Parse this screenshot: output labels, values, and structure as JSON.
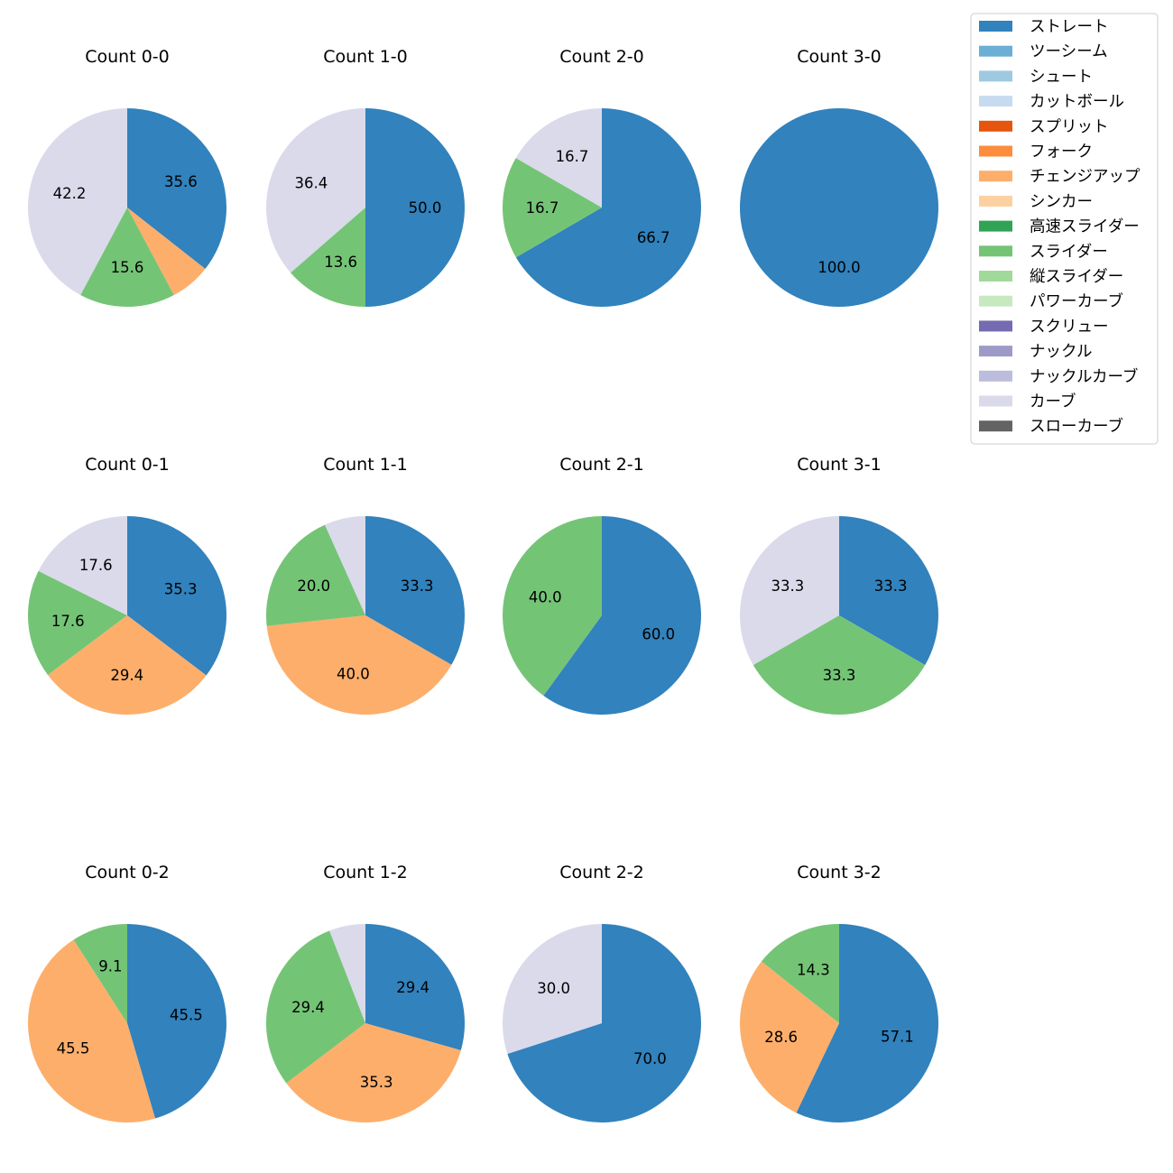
{
  "chart_data": {
    "type": "pie",
    "legend": {
      "placement": "top-right",
      "entries": [
        {
          "name": "ストレート",
          "color": "#3182bd"
        },
        {
          "name": "ツーシーム",
          "color": "#6baed6"
        },
        {
          "name": "シュート",
          "color": "#9ecae1"
        },
        {
          "name": "カットボール",
          "color": "#c6dbef"
        },
        {
          "name": "スプリット",
          "color": "#e6550d"
        },
        {
          "name": "フォーク",
          "color": "#fd8d3c"
        },
        {
          "name": "チェンジアップ",
          "color": "#fdae6b"
        },
        {
          "name": "シンカー",
          "color": "#fdd0a2"
        },
        {
          "name": "高速スライダー",
          "color": "#31a354"
        },
        {
          "name": "スライダー",
          "color": "#74c476"
        },
        {
          "name": "縦スライダー",
          "color": "#a1d99b"
        },
        {
          "name": "パワーカーブ",
          "color": "#c7e9c0"
        },
        {
          "name": "スクリュー",
          "color": "#756bb1"
        },
        {
          "name": "ナックル",
          "color": "#9e9ac8"
        },
        {
          "name": "ナックルカーブ",
          "color": "#bcbddc"
        },
        {
          "name": "カーブ",
          "color": "#dadaeb"
        },
        {
          "name": "スローカーブ",
          "color": "#636363"
        }
      ]
    },
    "charts": [
      {
        "title": "Count 0-0",
        "slices": [
          {
            "pitch": "ストレート",
            "value": 35.6,
            "label": "35.6"
          },
          {
            "pitch": "チェンジアップ",
            "value": 6.6,
            "label": ""
          },
          {
            "pitch": "スライダー",
            "value": 15.6,
            "label": "15.6"
          },
          {
            "pitch": "カーブ",
            "value": 42.2,
            "label": "42.2"
          }
        ]
      },
      {
        "title": "Count 1-0",
        "slices": [
          {
            "pitch": "ストレート",
            "value": 50.0,
            "label": "50.0"
          },
          {
            "pitch": "スライダー",
            "value": 13.6,
            "label": "13.6"
          },
          {
            "pitch": "カーブ",
            "value": 36.4,
            "label": "36.4"
          }
        ]
      },
      {
        "title": "Count 2-0",
        "slices": [
          {
            "pitch": "ストレート",
            "value": 66.7,
            "label": "66.7"
          },
          {
            "pitch": "スライダー",
            "value": 16.7,
            "label": "16.7"
          },
          {
            "pitch": "カーブ",
            "value": 16.7,
            "label": "16.7"
          }
        ]
      },
      {
        "title": "Count 3-0",
        "slices": [
          {
            "pitch": "ストレート",
            "value": 100.0,
            "label": "100.0"
          }
        ]
      },
      {
        "title": "Count 0-1",
        "slices": [
          {
            "pitch": "ストレート",
            "value": 35.3,
            "label": "35.3"
          },
          {
            "pitch": "チェンジアップ",
            "value": 29.4,
            "label": "29.4"
          },
          {
            "pitch": "スライダー",
            "value": 17.6,
            "label": "17.6"
          },
          {
            "pitch": "カーブ",
            "value": 17.6,
            "label": "17.6"
          }
        ]
      },
      {
        "title": "Count 1-1",
        "slices": [
          {
            "pitch": "ストレート",
            "value": 33.3,
            "label": "33.3"
          },
          {
            "pitch": "チェンジアップ",
            "value": 40.0,
            "label": "40.0"
          },
          {
            "pitch": "スライダー",
            "value": 20.0,
            "label": "20.0"
          },
          {
            "pitch": "カーブ",
            "value": 6.7,
            "label": ""
          }
        ]
      },
      {
        "title": "Count 2-1",
        "slices": [
          {
            "pitch": "ストレート",
            "value": 60.0,
            "label": "60.0"
          },
          {
            "pitch": "スライダー",
            "value": 40.0,
            "label": "40.0"
          }
        ]
      },
      {
        "title": "Count 3-1",
        "slices": [
          {
            "pitch": "ストレート",
            "value": 33.3,
            "label": "33.3"
          },
          {
            "pitch": "スライダー",
            "value": 33.3,
            "label": "33.3"
          },
          {
            "pitch": "カーブ",
            "value": 33.3,
            "label": "33.3"
          }
        ]
      },
      {
        "title": "Count 0-2",
        "slices": [
          {
            "pitch": "ストレート",
            "value": 45.5,
            "label": "45.5"
          },
          {
            "pitch": "チェンジアップ",
            "value": 45.5,
            "label": "45.5"
          },
          {
            "pitch": "スライダー",
            "value": 9.1,
            "label": "9.1"
          }
        ]
      },
      {
        "title": "Count 1-2",
        "slices": [
          {
            "pitch": "ストレート",
            "value": 29.4,
            "label": "29.4"
          },
          {
            "pitch": "チェンジアップ",
            "value": 35.3,
            "label": "35.3"
          },
          {
            "pitch": "スライダー",
            "value": 29.4,
            "label": "29.4"
          },
          {
            "pitch": "カーブ",
            "value": 5.9,
            "label": ""
          }
        ]
      },
      {
        "title": "Count 2-2",
        "slices": [
          {
            "pitch": "ストレート",
            "value": 70.0,
            "label": "70.0"
          },
          {
            "pitch": "カーブ",
            "value": 30.0,
            "label": "30.0"
          }
        ]
      },
      {
        "title": "Count 3-2",
        "slices": [
          {
            "pitch": "ストレート",
            "value": 57.1,
            "label": "57.1"
          },
          {
            "pitch": "チェンジアップ",
            "value": 28.6,
            "label": "28.6"
          },
          {
            "pitch": "スライダー",
            "value": 14.3,
            "label": "14.3"
          }
        ]
      }
    ]
  }
}
